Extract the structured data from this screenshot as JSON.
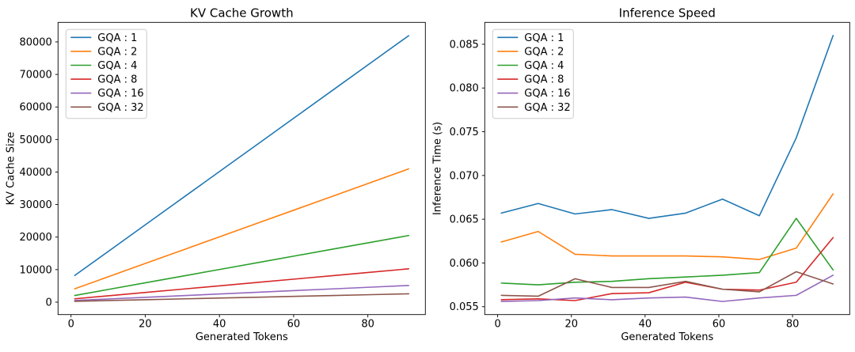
{
  "figure": {
    "background": "#ffffff",
    "text_color": "#000000",
    "axis_color": "#000000",
    "legend_border_color": "#cccccc",
    "legend_background": "#ffffff"
  },
  "chart_data": [
    {
      "type": "line",
      "title": "KV Cache Growth",
      "xlabel": "Generated Tokens",
      "ylabel": "KV Cache Size",
      "grid": false,
      "legend_position": "upper left",
      "x": [
        1,
        11,
        21,
        31,
        41,
        51,
        61,
        71,
        81,
        91
      ],
      "xlim": [
        -3.5,
        95.5
      ],
      "ylim": [
        -3827,
        86003
      ],
      "xticks": [
        0,
        20,
        40,
        60,
        80
      ],
      "xtick_labels": [
        "0",
        "20",
        "40",
        "60",
        "80"
      ],
      "yticks": [
        0,
        10000,
        20000,
        30000,
        40000,
        50000,
        60000,
        70000,
        80000
      ],
      "ytick_labels": [
        "0",
        "10000",
        "20000",
        "30000",
        "40000",
        "50000",
        "60000",
        "70000",
        "80000"
      ],
      "series": [
        {
          "name": "GQA : 1",
          "color": "#1f77b4",
          "values": [
            8192,
            16384,
            24576,
            32768,
            40960,
            49152,
            57344,
            65536,
            73728,
            81920
          ]
        },
        {
          "name": "GQA : 2",
          "color": "#ff7f0e",
          "values": [
            4096,
            8192,
            12288,
            16384,
            20480,
            24576,
            28672,
            32768,
            36864,
            40960
          ]
        },
        {
          "name": "GQA : 4",
          "color": "#2ca02c",
          "values": [
            2048,
            4096,
            6144,
            8192,
            10240,
            12288,
            14336,
            16384,
            18432,
            20480
          ]
        },
        {
          "name": "GQA : 8",
          "color": "#d62728",
          "values": [
            1024,
            2048,
            3072,
            4096,
            5120,
            6144,
            7168,
            8192,
            9216,
            10240
          ]
        },
        {
          "name": "GQA : 16",
          "color": "#9467bd",
          "values": [
            512,
            1024,
            1536,
            2048,
            2560,
            3072,
            3584,
            4096,
            4608,
            5120
          ]
        },
        {
          "name": "GQA : 32",
          "color": "#8c564b",
          "values": [
            256,
            512,
            768,
            1024,
            1280,
            1536,
            1792,
            2048,
            2304,
            2560
          ]
        }
      ]
    },
    {
      "type": "line",
      "title": "Inference Speed",
      "xlabel": "Generated Tokens",
      "ylabel": "Inference Time (s)",
      "grid": false,
      "legend_position": "upper left",
      "x": [
        1,
        11,
        21,
        31,
        41,
        51,
        61,
        71,
        81,
        91
      ],
      "xlim": [
        -3.5,
        95.5
      ],
      "ylim": [
        0.0541,
        0.0875
      ],
      "xticks": [
        0,
        20,
        40,
        60,
        80
      ],
      "xtick_labels": [
        "0",
        "20",
        "40",
        "60",
        "80"
      ],
      "yticks": [
        0.055,
        0.06,
        0.065,
        0.07,
        0.075,
        0.08,
        0.085
      ],
      "ytick_labels": [
        "0.055",
        "0.060",
        "0.065",
        "0.070",
        "0.075",
        "0.080",
        "0.085"
      ],
      "series": [
        {
          "name": "GQA : 1",
          "color": "#1f77b4",
          "values": [
            0.0657,
            0.0668,
            0.0656,
            0.0661,
            0.0651,
            0.0657,
            0.0673,
            0.0654,
            0.0743,
            0.086
          ]
        },
        {
          "name": "GQA : 2",
          "color": "#ff7f0e",
          "values": [
            0.0624,
            0.0636,
            0.061,
            0.0608,
            0.0608,
            0.0608,
            0.0607,
            0.0604,
            0.0617,
            0.0679
          ]
        },
        {
          "name": "GQA : 4",
          "color": "#2ca02c",
          "values": [
            0.0577,
            0.0575,
            0.0578,
            0.0579,
            0.0582,
            0.0584,
            0.0586,
            0.0589,
            0.0651,
            0.0592
          ]
        },
        {
          "name": "GQA : 8",
          "color": "#d62728",
          "values": [
            0.0558,
            0.0559,
            0.0557,
            0.0565,
            0.0566,
            0.0578,
            0.057,
            0.0569,
            0.0578,
            0.0629
          ]
        },
        {
          "name": "GQA : 16",
          "color": "#9467bd",
          "values": [
            0.0556,
            0.0557,
            0.056,
            0.0558,
            0.056,
            0.0561,
            0.0556,
            0.056,
            0.0563,
            0.0586
          ]
        },
        {
          "name": "GQA : 32",
          "color": "#8c564b",
          "values": [
            0.0563,
            0.0562,
            0.0582,
            0.0572,
            0.0572,
            0.0579,
            0.057,
            0.0567,
            0.059,
            0.0576
          ]
        }
      ]
    }
  ]
}
